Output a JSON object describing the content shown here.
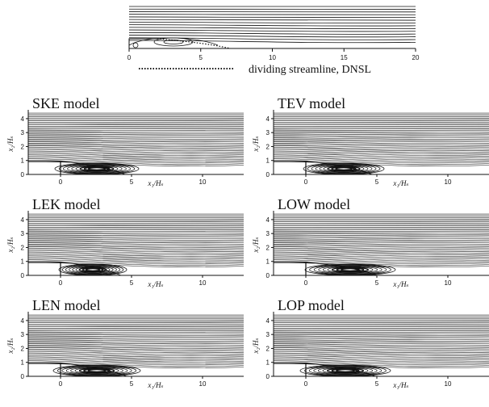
{
  "reference": {
    "x_ticks": [
      "0",
      "5",
      "10",
      "15",
      "20"
    ],
    "legend_label": "dividing streamline, DNSL"
  },
  "panels": [
    {
      "id": "ske",
      "title": "SKE model",
      "xlabel": "x₁/Hₛ",
      "ylabel": "x₂/Hₛ",
      "x_ticks": [
        "0",
        "5",
        "10"
      ],
      "y_ticks": [
        "0",
        "1",
        "2",
        "3",
        "4"
      ]
    },
    {
      "id": "tev",
      "title": "TEV model",
      "xlabel": "x₁/Hₛ",
      "ylabel": "x₂/Hₛ",
      "x_ticks": [
        "0",
        "5",
        "10"
      ],
      "y_ticks": [
        "0",
        "1",
        "2",
        "3",
        "4"
      ]
    },
    {
      "id": "lek",
      "title": "LEK model",
      "xlabel": "x₁/Hₛ",
      "ylabel": "x₂/Hₛ",
      "x_ticks": [
        "0",
        "5",
        "10"
      ],
      "y_ticks": [
        "0",
        "1",
        "2",
        "3",
        "4"
      ]
    },
    {
      "id": "low",
      "title": "LOW model",
      "xlabel": "x₁/Hₛ",
      "ylabel": "x₂/Hₛ",
      "x_ticks": [
        "0",
        "5",
        "10"
      ],
      "y_ticks": [
        "0",
        "1",
        "2",
        "3",
        "4"
      ]
    },
    {
      "id": "len",
      "title": "LEN model",
      "xlabel": "x₁/Hₛ",
      "ylabel": "x₂/Hₛ",
      "x_ticks": [
        "0",
        "5",
        "10"
      ],
      "y_ticks": [
        "0",
        "1",
        "2",
        "3",
        "4"
      ]
    },
    {
      "id": "lop",
      "title": "LOP model",
      "xlabel": "x₁/Hₛ",
      "ylabel": "x₂/Hₛ",
      "x_ticks": [
        "0",
        "5",
        "10"
      ],
      "y_ticks": [
        "0",
        "1",
        "2",
        "3",
        "4"
      ]
    }
  ]
}
